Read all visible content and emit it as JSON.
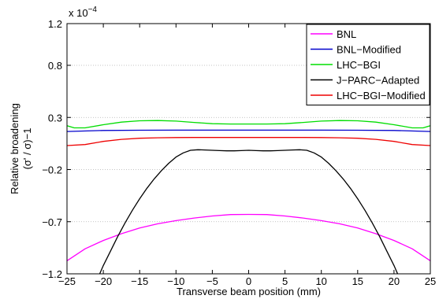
{
  "chart_data": {
    "type": "line",
    "xlabel": "Transverse beam position (mm)",
    "ylabel_lines": [
      "Relative broadening",
      "(σ' / σ)−1"
    ],
    "exponent": {
      "base": "x 10",
      "power": "−4"
    },
    "xlim": [
      -25,
      25
    ],
    "ylim": [
      -1.2,
      1.2
    ],
    "xticks": [
      -25,
      -20,
      -15,
      -10,
      -5,
      0,
      5,
      10,
      15,
      20,
      25
    ],
    "xtick_labels": [
      "−25",
      "−20",
      "−15",
      "−10",
      "−5",
      "0",
      "5",
      "10",
      "15",
      "20",
      "25"
    ],
    "yticks": [
      -1.2,
      -0.7,
      -0.2,
      0.3,
      0.8,
      1.2
    ],
    "ytick_labels": [
      "−1.2",
      "−0.7",
      "−0.2",
      "0.3",
      "0.8",
      "1.2"
    ],
    "grid": true,
    "legend_position": "top-right",
    "series": [
      {
        "name": "BNL",
        "color": "#ff00ff",
        "x": [
          -25,
          -22.5,
          -20,
          -17.5,
          -15,
          -12.5,
          -10,
          -7.5,
          -5,
          -2.5,
          0,
          2.5,
          5,
          7.5,
          10,
          12.5,
          15,
          17.5,
          20,
          22.5,
          25
        ],
        "y": [
          -1.075,
          -0.96,
          -0.88,
          -0.815,
          -0.76,
          -0.72,
          -0.69,
          -0.665,
          -0.645,
          -0.632,
          -0.63,
          -0.632,
          -0.645,
          -0.665,
          -0.69,
          -0.72,
          -0.76,
          -0.815,
          -0.88,
          -0.96,
          -1.075
        ]
      },
      {
        "name": "BNL−Modified",
        "color": "#0000cc",
        "x": [
          -25,
          -20,
          -15,
          -10,
          -5,
          0,
          5,
          10,
          15,
          20,
          25
        ],
        "y": [
          0.165,
          0.175,
          0.177,
          0.178,
          0.178,
          0.178,
          0.178,
          0.178,
          0.177,
          0.175,
          0.165
        ]
      },
      {
        "name": "LHC−BGI",
        "color": "#00dd00",
        "x": [
          -25,
          -24,
          -22.5,
          -20,
          -17.5,
          -15,
          -12.5,
          -10,
          -7.5,
          -5,
          -2.5,
          0,
          2.5,
          5,
          7.5,
          10,
          12.5,
          15,
          17.5,
          20,
          22.5,
          24,
          25
        ],
        "y": [
          0.22,
          0.2,
          0.2,
          0.23,
          0.255,
          0.268,
          0.27,
          0.265,
          0.252,
          0.24,
          0.237,
          0.237,
          0.237,
          0.24,
          0.252,
          0.265,
          0.27,
          0.268,
          0.255,
          0.23,
          0.2,
          0.2,
          0.22
        ]
      },
      {
        "name": "J−PARC−Adapted",
        "color": "#000000",
        "x": [
          -20.5,
          -20,
          -19,
          -18,
          -17,
          -16,
          -15,
          -14,
          -13,
          -12,
          -11,
          -10,
          -9,
          -8,
          -7,
          -6,
          -5,
          -4,
          -3,
          -2,
          -1,
          0,
          1,
          2,
          3,
          4,
          5,
          6,
          7,
          8,
          9,
          10,
          11,
          12,
          13,
          14,
          15,
          16,
          17,
          18,
          19,
          20,
          20.5
        ],
        "y": [
          -1.2,
          -1.12,
          -0.98,
          -0.84,
          -0.71,
          -0.59,
          -0.48,
          -0.38,
          -0.29,
          -0.21,
          -0.14,
          -0.08,
          -0.04,
          -0.015,
          -0.01,
          -0.012,
          -0.015,
          -0.018,
          -0.02,
          -0.02,
          -0.018,
          -0.015,
          -0.018,
          -0.02,
          -0.02,
          -0.018,
          -0.015,
          -0.012,
          -0.01,
          -0.015,
          -0.04,
          -0.08,
          -0.14,
          -0.21,
          -0.29,
          -0.38,
          -0.48,
          -0.59,
          -0.71,
          -0.84,
          -0.98,
          -1.12,
          -1.2
        ]
      },
      {
        "name": "LHC−BGI−Modified",
        "color": "#ee0000",
        "x": [
          -25,
          -22.5,
          -20,
          -17.5,
          -15,
          -12.5,
          -10,
          -7.5,
          -5,
          -2.5,
          0,
          2.5,
          5,
          7.5,
          10,
          12.5,
          15,
          17.5,
          20,
          22.5,
          25
        ],
        "y": [
          0.03,
          0.04,
          0.07,
          0.09,
          0.1,
          0.105,
          0.107,
          0.108,
          0.108,
          0.108,
          0.108,
          0.108,
          0.108,
          0.108,
          0.107,
          0.105,
          0.1,
          0.09,
          0.07,
          0.04,
          0.03
        ]
      }
    ]
  }
}
